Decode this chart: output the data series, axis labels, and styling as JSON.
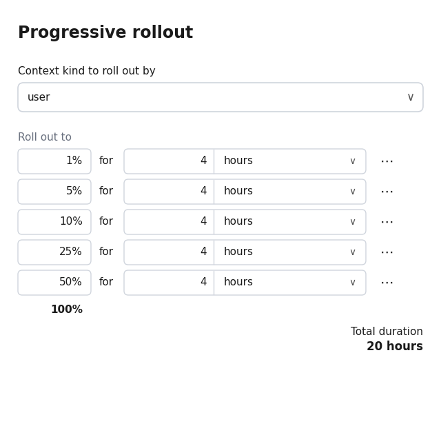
{
  "title": "Progressive rollout",
  "context_label": "Context kind to roll out by",
  "context_value": "user",
  "rollout_label": "Roll out to",
  "rows": [
    {
      "percent": "1%",
      "value": "4",
      "unit": "hours"
    },
    {
      "percent": "5%",
      "value": "4",
      "unit": "hours"
    },
    {
      "percent": "10%",
      "value": "4",
      "unit": "hours"
    },
    {
      "percent": "25%",
      "value": "4",
      "unit": "hours"
    },
    {
      "percent": "50%",
      "value": "4",
      "unit": "hours"
    }
  ],
  "final_percent": "100%",
  "total_duration_label": "Total duration",
  "total_duration_value": "20 hours",
  "bg_color": "#ffffff",
  "border_color": "#d0d5dd",
  "text_color": "#1a1a1a",
  "label_color": "#6b7280",
  "title_fontsize": 17,
  "label_fontsize": 11,
  "row_fontsize": 11,
  "small_fontsize": 10
}
